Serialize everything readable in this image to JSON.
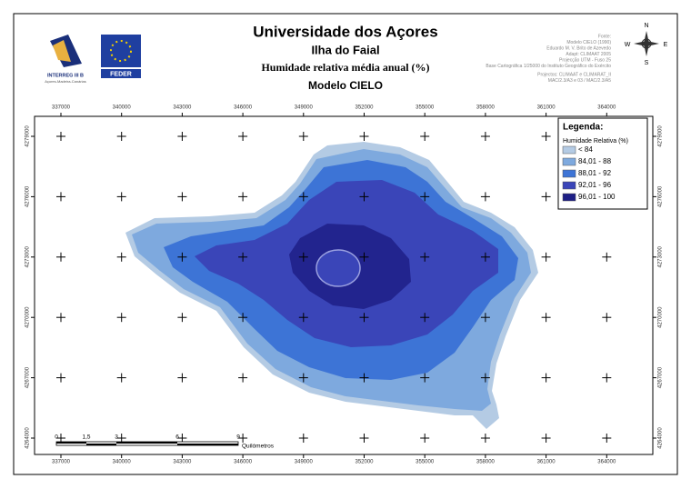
{
  "header": {
    "title": "Universidade dos Açores",
    "island": "Ilha do Faial",
    "subject": "Humidade relativa média anual (%)",
    "model": "Modelo CIELO"
  },
  "logos": {
    "interreg": "INTERREG III B",
    "interreg_sub": "Açores-Madeira-Canárias",
    "feder": "FEDER"
  },
  "source_notes": [
    "Fonte:",
    "Modelo CIELO (1990)",
    "Eduardo M. V. Brito de Azevedo",
    "Adapt: CLIMAAT 2005",
    "Projecção UTM - Fuso 25",
    "Base Cartográfica 1/25000 do Instituto Geográfico do Exército",
    "Projectos: CLIMAAT e CLIMARAT_II",
    "MAC/2.3/A3 e 03 / MAC/2.3/A5"
  ],
  "compass": {
    "north": "N",
    "south": "S",
    "east": "E",
    "west": "W"
  },
  "axes": {
    "x_ticks": [
      337000,
      340000,
      343000,
      346000,
      349000,
      352000,
      355000,
      358000,
      361000,
      364000
    ],
    "y_ticks": [
      4279000,
      4276000,
      4273000,
      4270000,
      4267000,
      4264000
    ]
  },
  "legend": {
    "title": "Legenda:",
    "subtitle": "Humidade Relativa (%)",
    "items": [
      {
        "label": "< 84",
        "color": "#b4cbe4"
      },
      {
        "label": "84,01 - 88",
        "color": "#7ea9de"
      },
      {
        "label": "88,01 - 92",
        "color": "#3d74d6"
      },
      {
        "label": "92,01 - 96",
        "color": "#3a45b8"
      },
      {
        "label": "96,01 - 100",
        "color": "#1e1f86"
      }
    ]
  },
  "scale_bar": {
    "labels": [
      "0",
      "1,5",
      "3",
      "6",
      "9"
    ],
    "unit": "Quilómetros"
  }
}
